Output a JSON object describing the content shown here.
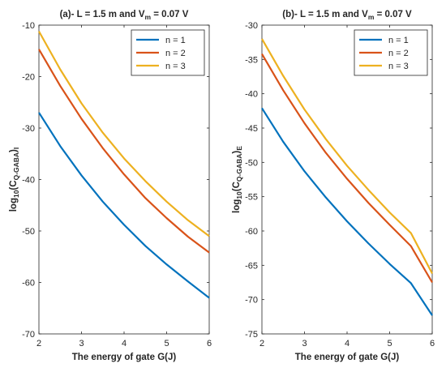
{
  "chart_data": [
    {
      "type": "line",
      "title_prefix": "(a)- L = 1.5 m and V",
      "title_sub": "m",
      "title_suffix": " = 0.07 V",
      "xlabel": "The energy of gate G(J)",
      "ylabel_prefix": "log",
      "ylabel_sub1": "10",
      "ylabel_mid": "(C",
      "ylabel_sub2": "Q-GABA",
      "ylabel_close": ")",
      "ylabel_sub3": "I",
      "xlim": [
        2,
        6
      ],
      "ylim": [
        -70,
        -10
      ],
      "xticks": [
        2,
        3,
        4,
        5,
        6
      ],
      "yticks": [
        -10,
        -20,
        -30,
        -40,
        -50,
        -60,
        -70
      ],
      "legend_position": "top-right",
      "grid": false,
      "series": [
        {
          "name": "n = 1",
          "color": "#0072BD",
          "x": [
            2,
            2.5,
            3,
            3.5,
            4,
            4.5,
            5,
            5.5,
            6
          ],
          "y": [
            -27,
            -33.5,
            -39.2,
            -44.3,
            -48.8,
            -52.9,
            -56.5,
            -59.8,
            -63
          ]
        },
        {
          "name": "n = 2",
          "color": "#D95319",
          "x": [
            2,
            2.5,
            3,
            3.5,
            4,
            4.5,
            5,
            5.5,
            6
          ],
          "y": [
            -14.7,
            -21.8,
            -28.2,
            -33.9,
            -39,
            -43.6,
            -47.5,
            -51.1,
            -54.2
          ]
        },
        {
          "name": "n = 3",
          "color": "#EDB120",
          "x": [
            2,
            2.5,
            3,
            3.5,
            4,
            4.5,
            5,
            5.5,
            6
          ],
          "y": [
            -11.2,
            -18.6,
            -25.2,
            -30.9,
            -35.9,
            -40.3,
            -44.3,
            -47.9,
            -51
          ]
        }
      ]
    },
    {
      "type": "line",
      "title_prefix": "(b)- L = 1.5 m and V",
      "title_sub": "m",
      "title_suffix": " = 0.07 V",
      "xlabel": "The energy of gate G(J)",
      "ylabel_prefix": "log",
      "ylabel_sub1": "10",
      "ylabel_mid": "(C",
      "ylabel_sub2": "Q-GABA",
      "ylabel_close": ")",
      "ylabel_sub3": "E",
      "xlim": [
        2,
        6
      ],
      "ylim": [
        -75,
        -30
      ],
      "xticks": [
        2,
        3,
        4,
        5,
        6
      ],
      "yticks": [
        -30,
        -35,
        -40,
        -45,
        -50,
        -55,
        -60,
        -65,
        -70,
        -75
      ],
      "legend_position": "top-right",
      "grid": false,
      "series": [
        {
          "name": "n = 1",
          "color": "#0072BD",
          "x": [
            2,
            2.5,
            3,
            3.5,
            4,
            4.5,
            5,
            5.5,
            6
          ],
          "y": [
            -42.1,
            -47,
            -51.3,
            -55.1,
            -58.6,
            -61.8,
            -64.8,
            -67.6,
            -72.3
          ]
        },
        {
          "name": "n = 2",
          "color": "#D95319",
          "x": [
            2,
            2.5,
            3,
            3.5,
            4,
            4.5,
            5,
            5.5,
            6
          ],
          "y": [
            -34.2,
            -39.5,
            -44.3,
            -48.6,
            -52.4,
            -55.9,
            -59.1,
            -62.2,
            -67.5
          ]
        },
        {
          "name": "n = 3",
          "color": "#EDB120",
          "x": [
            2,
            2.5,
            3,
            3.5,
            4,
            4.5,
            5,
            5.5,
            6
          ],
          "y": [
            -32,
            -37.4,
            -42.3,
            -46.6,
            -50.5,
            -54,
            -57.3,
            -60.3,
            -66.2
          ]
        }
      ]
    }
  ]
}
